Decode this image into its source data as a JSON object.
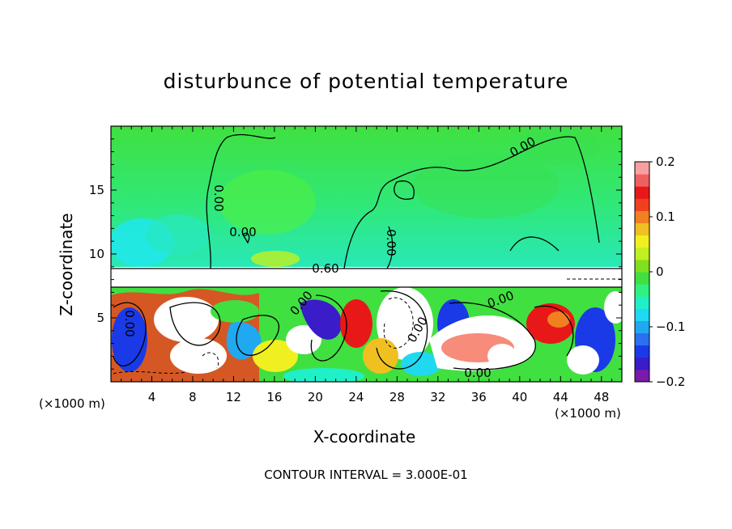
{
  "chart_data": {
    "type": "heatmap",
    "title": "disturbunce of potential temperature",
    "xlabel": "X-coordinate",
    "ylabel": "Z-coordinate",
    "x_unit_left": "(×1000 m)",
    "x_unit_right": "(×1000 m)",
    "xlim": [
      0,
      50
    ],
    "ylim": [
      0,
      20
    ],
    "x_ticks": [
      4,
      8,
      12,
      16,
      20,
      24,
      28,
      32,
      36,
      40,
      44,
      48
    ],
    "y_ticks": [
      5,
      10,
      15
    ],
    "colorbar": {
      "min": -0.2,
      "max": 0.2,
      "tick_labels": [
        "0.2",
        "0.1",
        "0",
        "−0.1",
        "−0.2"
      ],
      "tick_values": [
        0.2,
        0.1,
        0,
        -0.1,
        -0.2
      ]
    },
    "contour_labels": [
      "0.00",
      "0.00",
      "0.00",
      "0.00",
      "0.60",
      "0.00",
      "0.00",
      "0.00",
      "0.00",
      "0.00"
    ],
    "contour_interval_text": "CONTOUR INTERVAL = 3.000E-01"
  },
  "colors": {
    "colorbar": [
      "#7a1aa8",
      "#3a1cc8",
      "#1a3ae8",
      "#2a70f0",
      "#20a8f0",
      "#20d8f0",
      "#20f0c8",
      "#30f080",
      "#40e040",
      "#80e020",
      "#c0f020",
      "#f0f020",
      "#f0c020",
      "#f08020",
      "#f04020",
      "#e81818",
      "#f06060",
      "#f8a0a0"
    ]
  }
}
